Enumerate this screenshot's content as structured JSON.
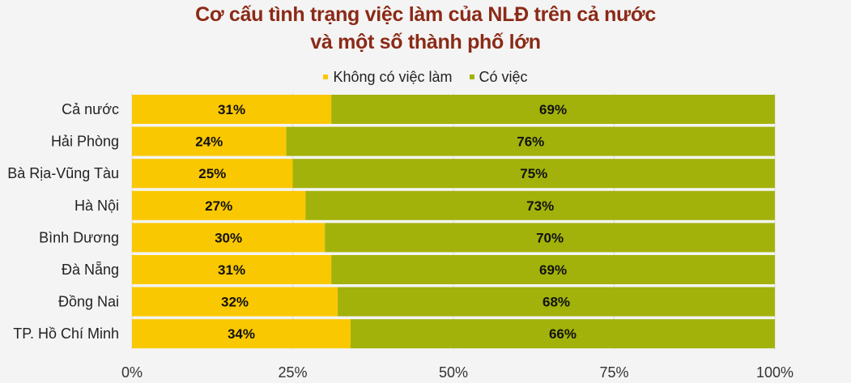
{
  "chart_data": {
    "type": "bar",
    "orientation": "horizontal",
    "stacked": true,
    "title": [
      "Cơ cấu tình trạng việc làm của NLĐ trên cả nước",
      "và một số thành phố lớn"
    ],
    "categories": [
      "Cả nước",
      "Hải Phòng",
      "Bà Rịa-Vũng Tàu",
      "Hà Nội",
      "Bình Dương",
      "Đà Nẵng",
      "Đồng Nai",
      "TP. Hồ Chí Minh"
    ],
    "series": [
      {
        "name": "Không có việc làm",
        "color": "#fac800",
        "values": [
          31,
          24,
          25,
          27,
          30,
          31,
          32,
          34
        ],
        "labels": [
          "31%",
          "24%",
          "25%",
          "27%",
          "30%",
          "31%",
          "32%",
          "34%"
        ]
      },
      {
        "name": "Có việc",
        "color": "#a2b20a",
        "values": [
          69,
          76,
          75,
          73,
          70,
          69,
          68,
          66
        ],
        "labels": [
          "69%",
          "76%",
          "75%",
          "73%",
          "70%",
          "69%",
          "68%",
          "66%"
        ]
      }
    ],
    "xlim": [
      0,
      100
    ],
    "xticks": [
      0,
      25,
      50,
      75,
      100
    ],
    "xtick_labels": [
      "0%",
      "25%",
      "50%",
      "75%",
      "100%"
    ],
    "legend_position": "top",
    "grid": true,
    "title_color": "#8b2a17"
  }
}
